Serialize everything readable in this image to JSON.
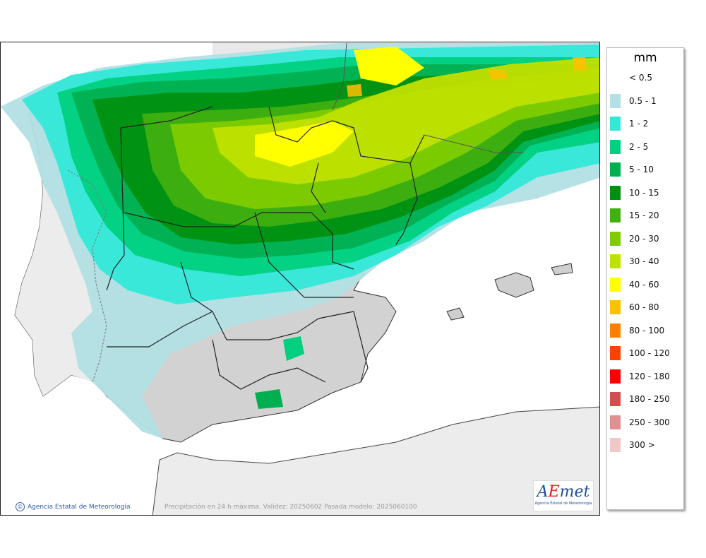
{
  "map": {
    "caption": "Precipitación en 24 h máxima. Validez: 20250602 Pasada modelo: 2025060100",
    "credit": "Agencia Estatal de Meteorología",
    "logo": {
      "word_a": "A",
      "word_e": "E",
      "word_met": "met",
      "subtitle": "Agencia Estatal de Meteorología"
    }
  },
  "legend": {
    "unit": "mm",
    "classes": [
      {
        "label": "< 0.5",
        "color": "#ffffff"
      },
      {
        "label": "0.5 - 1",
        "color": "#b2e0e4"
      },
      {
        "label": "1 - 2",
        "color": "#34e8d8"
      },
      {
        "label": "2 - 5",
        "color": "#00d080"
      },
      {
        "label": "5 - 10",
        "color": "#00b050"
      },
      {
        "label": "10 - 15",
        "color": "#009010"
      },
      {
        "label": "15 - 20",
        "color": "#40b010"
      },
      {
        "label": "20 - 30",
        "color": "#80cc00"
      },
      {
        "label": "30 - 40",
        "color": "#c0e000"
      },
      {
        "label": "40 - 60",
        "color": "#ffff00"
      },
      {
        "label": "60 - 80",
        "color": "#ffc000"
      },
      {
        "label": "80 - 100",
        "color": "#ff8000"
      },
      {
        "label": "100 - 120",
        "color": "#ff4000"
      },
      {
        "label": "120 - 180",
        "color": "#ff0000"
      },
      {
        "label": "180 - 250",
        "color": "#d05050"
      },
      {
        "label": "250 - 300",
        "color": "#e09090"
      },
      {
        "label": "300 >",
        "color": "#f0c8c8"
      }
    ]
  }
}
